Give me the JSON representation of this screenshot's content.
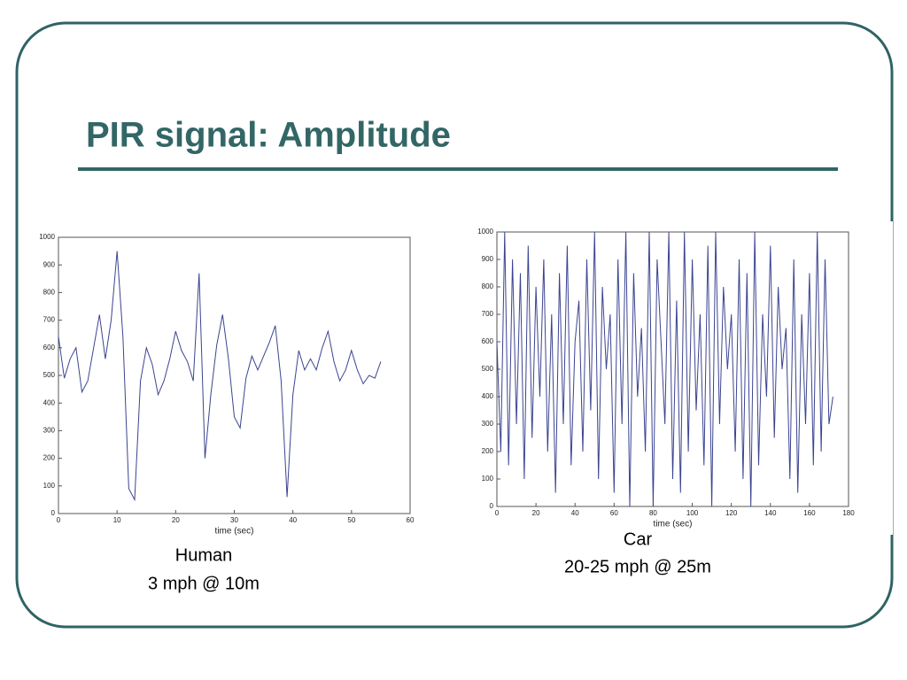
{
  "title": "PIR signal: Amplitude",
  "chart_data": [
    {
      "type": "line",
      "caption": [
        "Human",
        "3 mph @ 10m"
      ],
      "x_label": "time (sec)",
      "x": [
        0,
        1,
        2,
        3,
        4,
        5,
        6,
        7,
        8,
        9,
        10,
        11,
        12,
        13,
        14,
        15,
        16,
        17,
        18,
        19,
        20,
        21,
        22,
        23,
        24,
        25,
        26,
        27,
        28,
        29,
        30,
        31,
        32,
        33,
        34,
        35,
        36,
        37,
        38,
        39,
        40,
        41,
        42,
        43,
        44,
        45,
        46,
        47,
        48,
        49,
        50,
        51,
        52,
        53,
        54,
        55
      ],
      "series": [
        {
          "color": "#3b4490",
          "values": [
            640,
            490,
            560,
            600,
            440,
            480,
            600,
            720,
            560,
            700,
            950,
            640,
            90,
            50,
            480,
            600,
            540,
            430,
            480,
            560,
            660,
            590,
            550,
            480,
            870,
            200,
            430,
            610,
            720,
            560,
            350,
            310,
            490,
            570,
            520,
            570,
            620,
            680,
            480,
            60,
            430,
            590,
            520,
            560,
            520,
            600,
            660,
            550,
            480,
            520,
            590,
            520,
            470,
            500,
            490,
            550
          ]
        }
      ],
      "xlim": [
        0,
        60
      ],
      "xticks": [
        0,
        10,
        20,
        30,
        40,
        50,
        60
      ],
      "ylim": [
        0,
        1000
      ],
      "yticks": [
        0,
        100,
        200,
        300,
        400,
        500,
        600,
        700,
        800,
        900,
        1000
      ]
    },
    {
      "type": "line",
      "caption": [
        "Car",
        "20-25 mph @ 25m"
      ],
      "x_label": "time (sec)",
      "x": [
        0,
        2,
        4,
        6,
        8,
        10,
        12,
        14,
        16,
        18,
        20,
        22,
        24,
        26,
        28,
        30,
        32,
        34,
        36,
        38,
        40,
        42,
        44,
        46,
        48,
        50,
        52,
        54,
        56,
        58,
        60,
        62,
        64,
        66,
        68,
        70,
        72,
        74,
        76,
        78,
        80,
        82,
        84,
        86,
        88,
        90,
        92,
        94,
        96,
        98,
        100,
        102,
        104,
        106,
        108,
        110,
        112,
        114,
        116,
        118,
        120,
        122,
        124,
        126,
        128,
        130,
        132,
        134,
        136,
        138,
        140,
        142,
        144,
        146,
        148,
        150,
        152,
        154,
        156,
        158,
        160,
        162,
        164,
        166,
        168,
        170,
        172
      ],
      "series": [
        {
          "color": "#3b4490",
          "values": [
            600,
            200,
            1000,
            150,
            900,
            300,
            850,
            100,
            950,
            250,
            800,
            400,
            900,
            200,
            700,
            50,
            850,
            300,
            950,
            150,
            600,
            750,
            200,
            900,
            350,
            1000,
            100,
            800,
            500,
            700,
            50,
            900,
            300,
            1000,
            0,
            850,
            400,
            650,
            200,
            1000,
            0,
            900,
            600,
            300,
            1000,
            100,
            750,
            50,
            1000,
            200,
            900,
            350,
            700,
            150,
            950,
            0,
            1000,
            300,
            800,
            500,
            700,
            200,
            900,
            100,
            850,
            0,
            1000,
            150,
            700,
            400,
            950,
            250,
            800,
            500,
            650,
            100,
            900,
            50,
            700,
            300,
            850,
            150,
            1000,
            200,
            900,
            300,
            400
          ]
        }
      ],
      "xlim": [
        0,
        180
      ],
      "xticks": [
        0,
        20,
        40,
        60,
        80,
        100,
        120,
        140,
        160,
        180
      ],
      "ylim": [
        0,
        1000
      ],
      "yticks": [
        0,
        100,
        200,
        300,
        400,
        500,
        600,
        700,
        800,
        900,
        1000
      ]
    }
  ]
}
